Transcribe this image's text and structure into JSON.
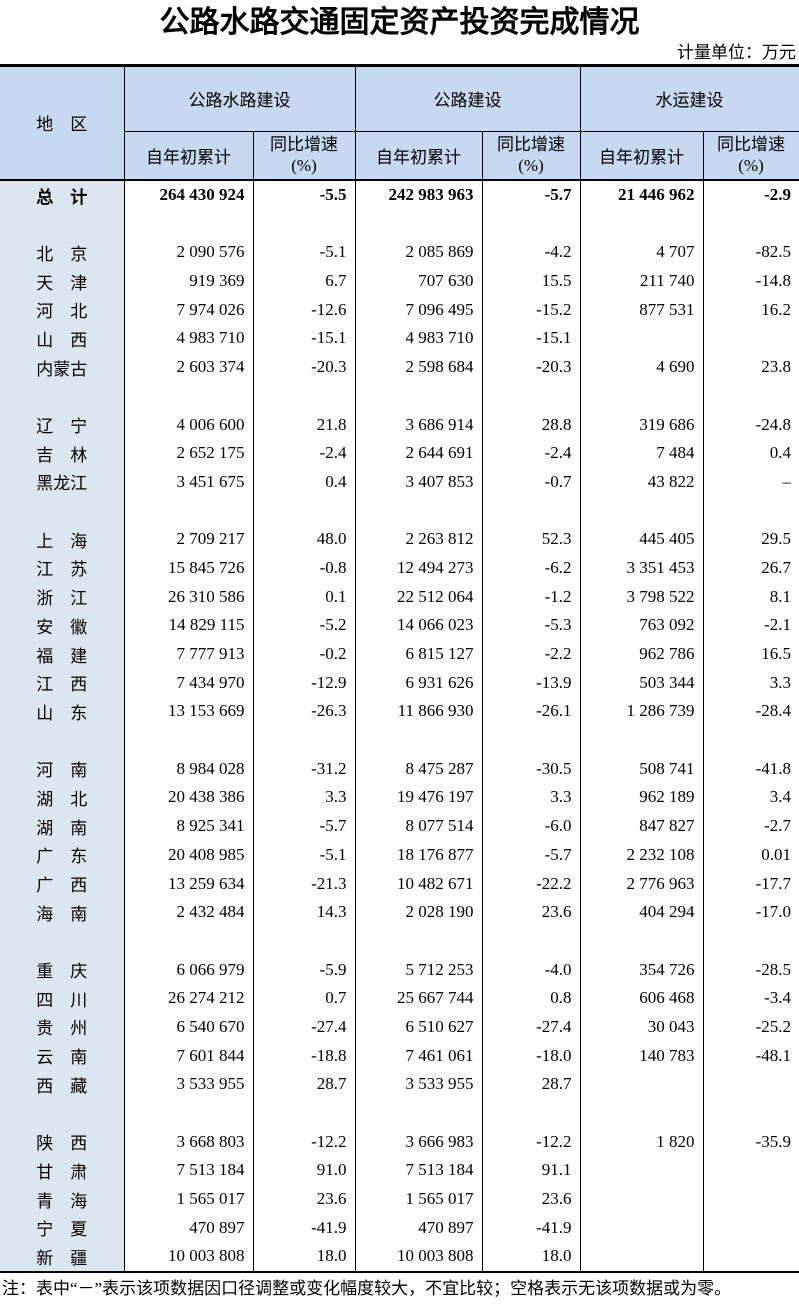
{
  "title": "公路水路交通固定资产投资完成情况",
  "unit_label": "计量单位：万元",
  "colors": {
    "header_bg": "#C6D9F1",
    "region_bg": "#DCE6F1",
    "border_c": "#000000"
  },
  "table": {
    "region_header": "地　区",
    "groups": [
      {
        "label": "公路水路建设"
      },
      {
        "label": "公路建设"
      },
      {
        "label": "水运建设"
      }
    ],
    "sub_cumulative": "自年初累计",
    "sub_growth_line1": "同比增速",
    "sub_growth_line2": "(%)",
    "total_row": {
      "region": "总　计",
      "values": [
        "264 430 924",
        "-5.5",
        "242 983 963",
        "-5.7",
        "21 446 962",
        "-2.9"
      ]
    },
    "groups_rows": [
      [
        {
          "region": "北　京",
          "values": [
            "2 090 576",
            "-5.1",
            "2 085 869",
            "-4.2",
            "4 707",
            "-82.5"
          ]
        },
        {
          "region": "天　津",
          "values": [
            "919 369",
            "6.7",
            "707 630",
            "15.5",
            "211 740",
            "-14.8"
          ]
        },
        {
          "region": "河　北",
          "values": [
            "7 974 026",
            "-12.6",
            "7 096 495",
            "-15.2",
            "877 531",
            "16.2"
          ]
        },
        {
          "region": "山　西",
          "values": [
            "4 983 710",
            "-15.1",
            "4 983 710",
            "-15.1",
            "",
            ""
          ]
        },
        {
          "region": "内蒙古",
          "values": [
            "2 603 374",
            "-20.3",
            "2 598 684",
            "-20.3",
            "4 690",
            "23.8"
          ]
        }
      ],
      [
        {
          "region": "辽　宁",
          "values": [
            "4 006 600",
            "21.8",
            "3 686 914",
            "28.8",
            "319 686",
            "-24.8"
          ]
        },
        {
          "region": "吉　林",
          "values": [
            "2 652 175",
            "-2.4",
            "2 644 691",
            "-2.4",
            "7 484",
            "0.4"
          ]
        },
        {
          "region": "黑龙江",
          "values": [
            "3 451 675",
            "0.4",
            "3 407 853",
            "-0.7",
            "43 822",
            "–"
          ]
        }
      ],
      [
        {
          "region": "上　海",
          "values": [
            "2 709 217",
            "48.0",
            "2 263 812",
            "52.3",
            "445 405",
            "29.5"
          ]
        },
        {
          "region": "江　苏",
          "values": [
            "15 845 726",
            "-0.8",
            "12 494 273",
            "-6.2",
            "3 351 453",
            "26.7"
          ]
        },
        {
          "region": "浙　江",
          "values": [
            "26 310 586",
            "0.1",
            "22 512 064",
            "-1.2",
            "3 798 522",
            "8.1"
          ]
        },
        {
          "region": "安　徽",
          "values": [
            "14 829 115",
            "-5.2",
            "14 066 023",
            "-5.3",
            "763 092",
            "-2.1"
          ]
        },
        {
          "region": "福　建",
          "values": [
            "7 777 913",
            "-0.2",
            "6 815 127",
            "-2.2",
            "962 786",
            "16.5"
          ]
        },
        {
          "region": "江　西",
          "values": [
            "7 434 970",
            "-12.9",
            "6 931 626",
            "-13.9",
            "503 344",
            "3.3"
          ]
        },
        {
          "region": "山　东",
          "values": [
            "13 153 669",
            "-26.3",
            "11 866 930",
            "-26.1",
            "1 286 739",
            "-28.4"
          ]
        }
      ],
      [
        {
          "region": "河　南",
          "values": [
            "8 984 028",
            "-31.2",
            "8 475 287",
            "-30.5",
            "508 741",
            "-41.8"
          ]
        },
        {
          "region": "湖　北",
          "values": [
            "20 438 386",
            "3.3",
            "19 476 197",
            "3.3",
            "962 189",
            "3.4"
          ]
        },
        {
          "region": "湖　南",
          "values": [
            "8 925 341",
            "-5.7",
            "8 077 514",
            "-6.0",
            "847 827",
            "-2.7"
          ]
        },
        {
          "region": "广　东",
          "values": [
            "20 408 985",
            "-5.1",
            "18 176 877",
            "-5.7",
            "2 232 108",
            "0.01"
          ]
        },
        {
          "region": "广　西",
          "values": [
            "13 259 634",
            "-21.3",
            "10 482 671",
            "-22.2",
            "2 776 963",
            "-17.7"
          ]
        },
        {
          "region": "海　南",
          "values": [
            "2 432 484",
            "14.3",
            "2 028 190",
            "23.6",
            "404 294",
            "-17.0"
          ]
        }
      ],
      [
        {
          "region": "重　庆",
          "values": [
            "6 066 979",
            "-5.9",
            "5 712 253",
            "-4.0",
            "354 726",
            "-28.5"
          ]
        },
        {
          "region": "四　川",
          "values": [
            "26 274 212",
            "0.7",
            "25 667 744",
            "0.8",
            "606 468",
            "-3.4"
          ]
        },
        {
          "region": "贵　州",
          "values": [
            "6 540 670",
            "-27.4",
            "6 510 627",
            "-27.4",
            "30 043",
            "-25.2"
          ]
        },
        {
          "region": "云　南",
          "values": [
            "7 601 844",
            "-18.8",
            "7 461 061",
            "-18.0",
            "140 783",
            "-48.1"
          ]
        },
        {
          "region": "西　藏",
          "values": [
            "3 533 955",
            "28.7",
            "3 533 955",
            "28.7",
            "",
            ""
          ]
        }
      ],
      [
        {
          "region": "陕　西",
          "values": [
            "3 668 803",
            "-12.2",
            "3 666 983",
            "-12.2",
            "1 820",
            "-35.9"
          ]
        },
        {
          "region": "甘　肃",
          "values": [
            "7 513 184",
            "91.0",
            "7 513 184",
            "91.1",
            "",
            ""
          ]
        },
        {
          "region": "青　海",
          "values": [
            "1 565 017",
            "23.6",
            "1 565 017",
            "23.6",
            "",
            ""
          ]
        },
        {
          "region": "宁　夏",
          "values": [
            "470 897",
            "-41.9",
            "470 897",
            "-41.9",
            "",
            ""
          ]
        },
        {
          "region": "新　疆",
          "values": [
            "10 003 808",
            "18.0",
            "10 003 808",
            "18.0",
            "",
            ""
          ]
        }
      ]
    ]
  },
  "note": "注：表中“－”表示该项数据因口径调整或变化幅度较大，不宜比较；空格表示无该项数据或为零。"
}
